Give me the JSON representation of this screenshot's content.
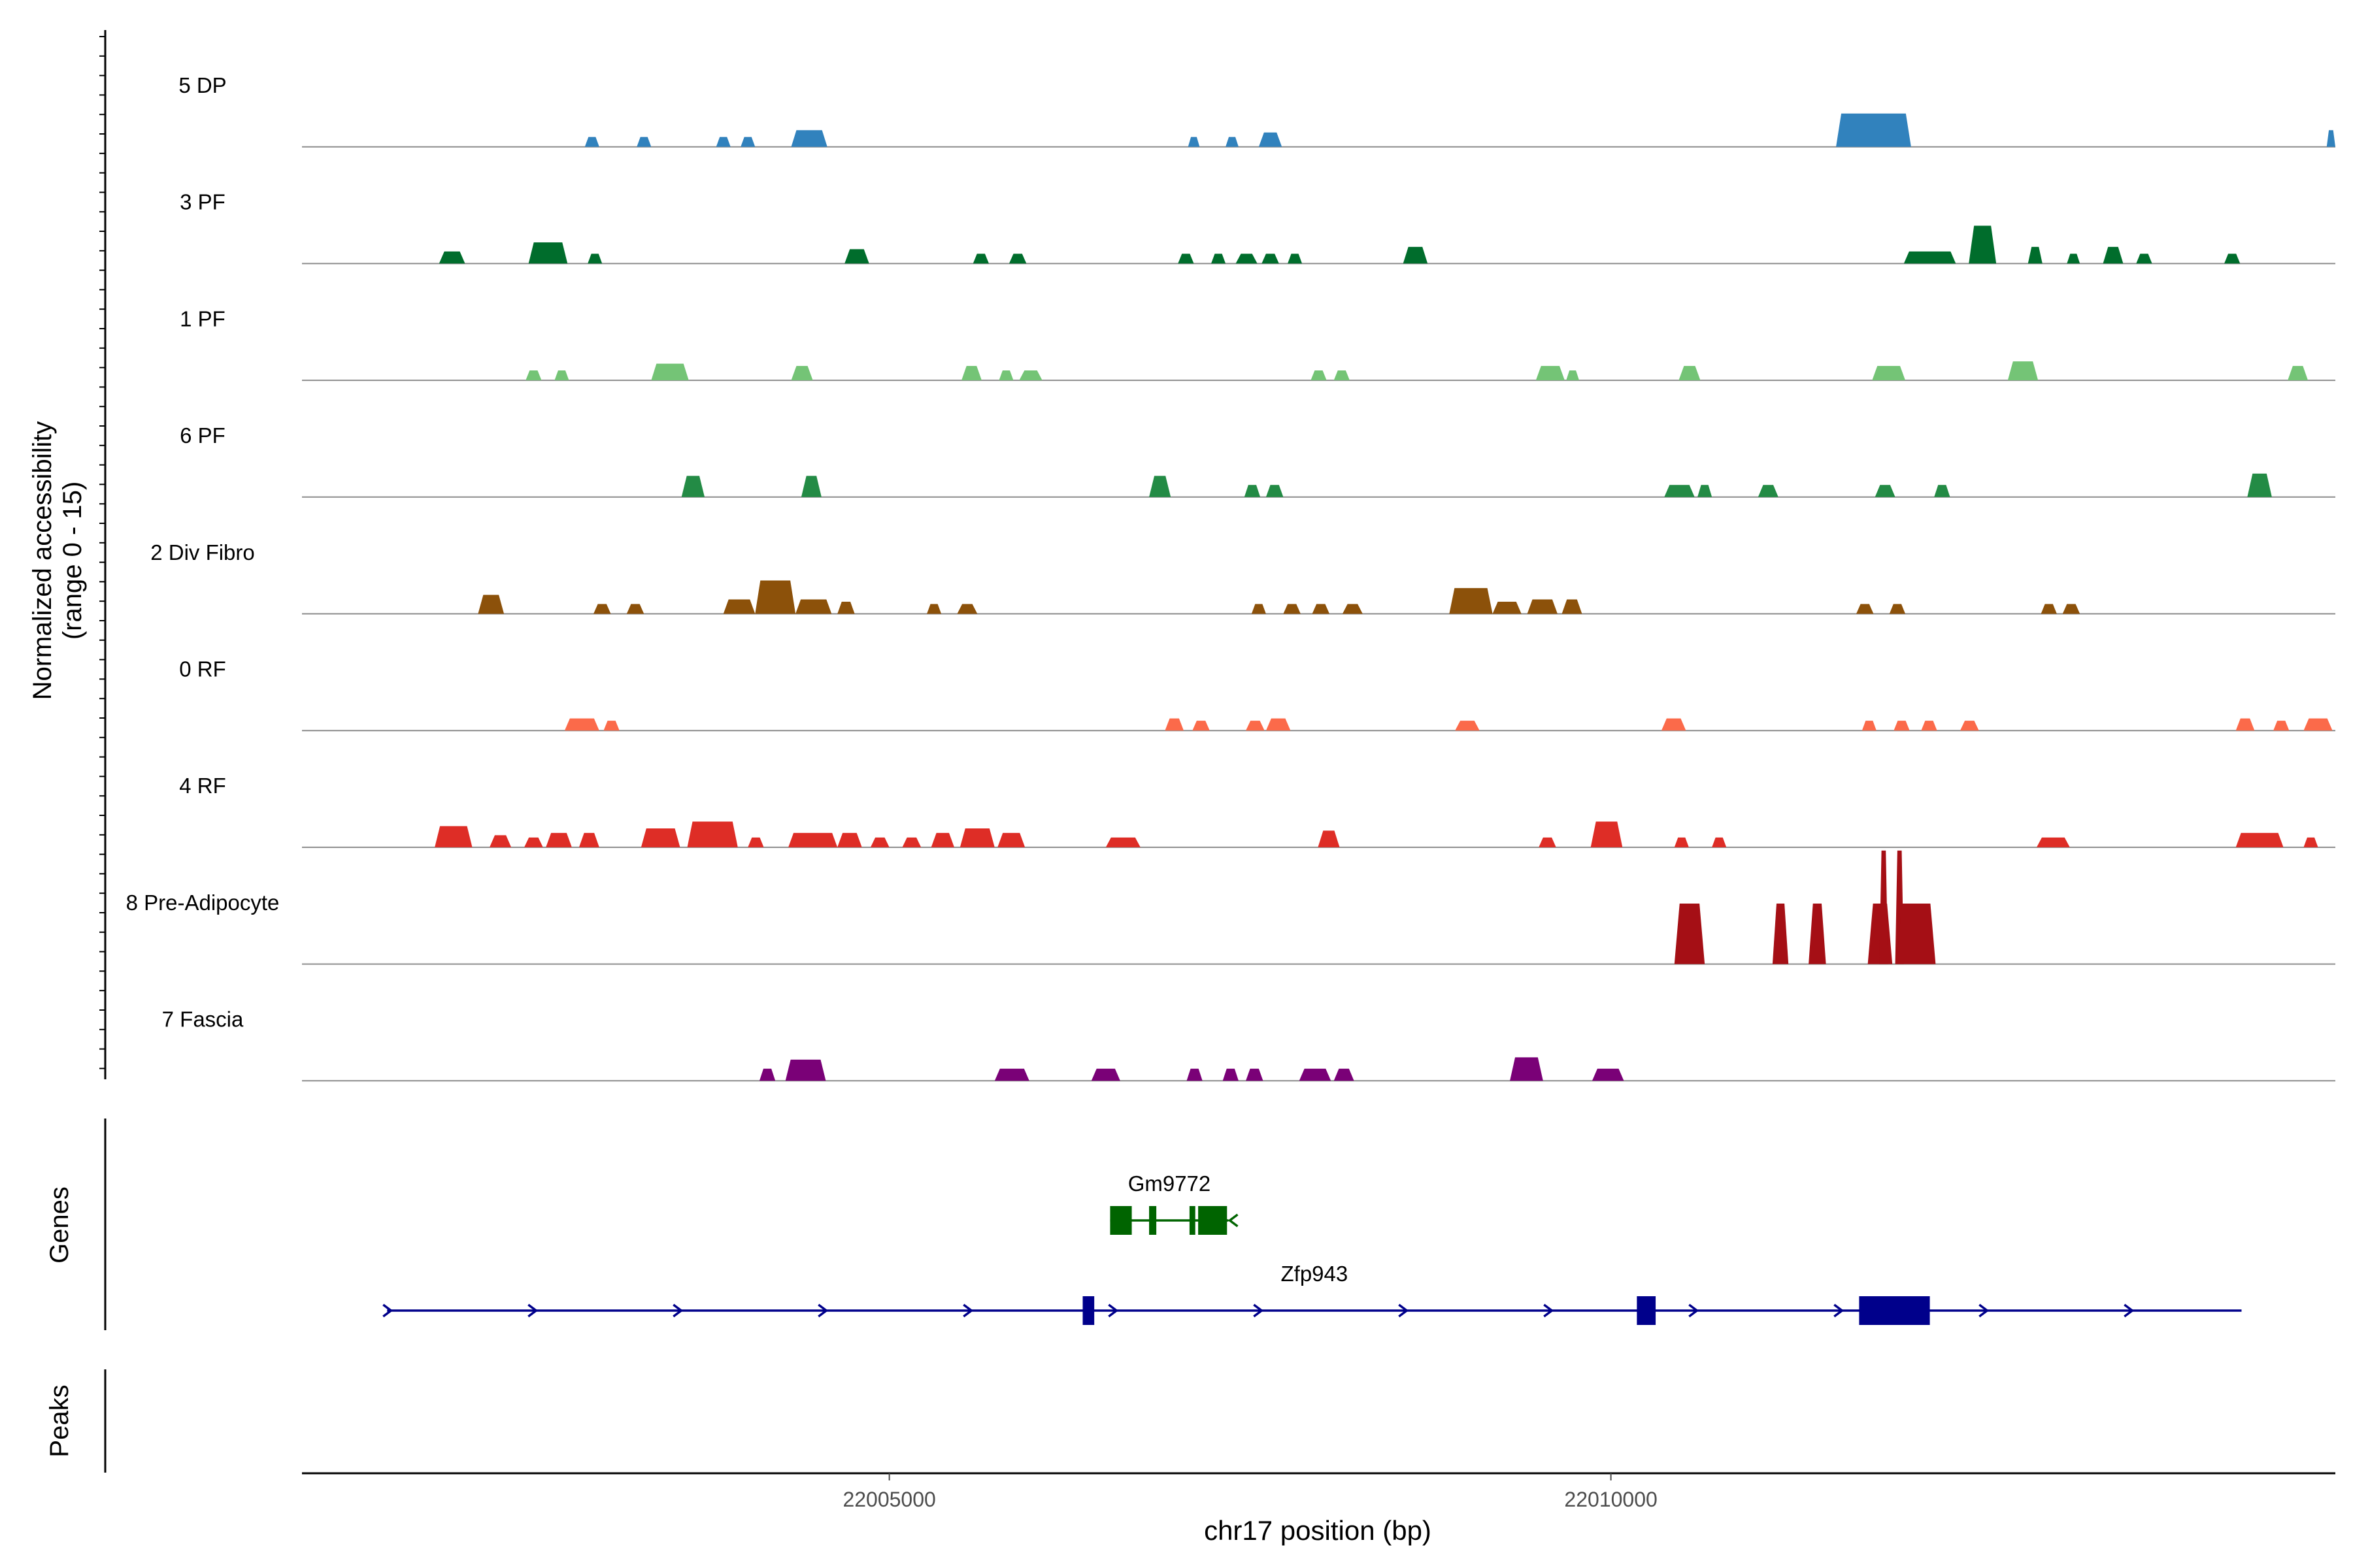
{
  "chart_data": {
    "type": "area",
    "subtype": "genome-coverage-track",
    "ylabel": "Normalized accessibility",
    "ylabel_range": "(range 0 - 15)",
    "ylim": [
      0,
      15
    ],
    "xlabel": "chr17 position (bp)",
    "xlim": [
      22000930,
      22015020
    ],
    "xticks": [
      22005000,
      22010000
    ],
    "xtick_labels": [
      "22005000",
      "22010000"
    ],
    "grid": false,
    "legend": "none",
    "tracks": [
      {
        "name": "5 DP",
        "color": "#3182BD",
        "peaks": [
          [
            22002890,
            22002990,
            1.3
          ],
          [
            22003250,
            22003350,
            1.3
          ],
          [
            22003800,
            22003900,
            1.3
          ],
          [
            22003970,
            22004070,
            1.3
          ],
          [
            22004320,
            22004570,
            2.2
          ],
          [
            22007070,
            22007150,
            1.3
          ],
          [
            22007330,
            22007420,
            1.3
          ],
          [
            22007560,
            22007720,
            1.9
          ],
          [
            22011560,
            22012080,
            4.4
          ],
          [
            22014960,
            22015020,
            2.2
          ]
        ]
      },
      {
        "name": "3 PF",
        "color": "#006D2C",
        "peaks": [
          [
            22001880,
            22002060,
            1.6
          ],
          [
            22002500,
            22002770,
            2.8
          ],
          [
            22002910,
            22003010,
            1.3
          ],
          [
            22004690,
            22004860,
            1.9
          ],
          [
            22005580,
            22005690,
            1.3
          ],
          [
            22005830,
            22005950,
            1.3
          ],
          [
            22007000,
            22007110,
            1.3
          ],
          [
            22007230,
            22007330,
            1.3
          ],
          [
            22007400,
            22007550,
            1.3
          ],
          [
            22007580,
            22007700,
            1.3
          ],
          [
            22007760,
            22007860,
            1.3
          ],
          [
            22008560,
            22008730,
            2.2
          ],
          [
            22012030,
            22012390,
            1.6
          ],
          [
            22012480,
            22012670,
            5.0
          ],
          [
            22012890,
            22012990,
            2.2
          ],
          [
            22013160,
            22013250,
            1.3
          ],
          [
            22013410,
            22013550,
            2.2
          ],
          [
            22013640,
            22013750,
            1.3
          ],
          [
            22014250,
            22014360,
            1.3
          ]
        ]
      },
      {
        "name": "1 PF",
        "color": "#74C476",
        "peaks": [
          [
            22002480,
            22002590,
            1.3
          ],
          [
            22002680,
            22002780,
            1.3
          ],
          [
            22003350,
            22003610,
            2.2
          ],
          [
            22004320,
            22004470,
            1.9
          ],
          [
            22005500,
            22005640,
            1.9
          ],
          [
            22005760,
            22005860,
            1.3
          ],
          [
            22005900,
            22006060,
            1.3
          ],
          [
            22007920,
            22008030,
            1.3
          ],
          [
            22008080,
            22008190,
            1.3
          ],
          [
            22009480,
            22009680,
            1.9
          ],
          [
            22009690,
            22009780,
            1.3
          ],
          [
            22010470,
            22010620,
            1.9
          ],
          [
            22011810,
            22012040,
            1.9
          ],
          [
            22012750,
            22012960,
            2.5
          ],
          [
            22014690,
            22014830,
            1.9
          ]
        ]
      },
      {
        "name": "6 PF",
        "color": "#238B45",
        "peaks": [
          [
            22003560,
            22003720,
            2.8
          ],
          [
            22004390,
            22004530,
            2.8
          ],
          [
            22006800,
            22006950,
            2.8
          ],
          [
            22007460,
            22007570,
            1.6
          ],
          [
            22007610,
            22007730,
            1.6
          ],
          [
            22010370,
            22010580,
            1.6
          ],
          [
            22010600,
            22010700,
            1.6
          ],
          [
            22011020,
            22011160,
            1.6
          ],
          [
            22011830,
            22011970,
            1.6
          ],
          [
            22012240,
            22012350,
            1.6
          ],
          [
            22014410,
            22014580,
            3.1
          ]
        ]
      },
      {
        "name": "2 Div Fibro",
        "color": "#8C510A",
        "peaks": [
          [
            22002150,
            22002330,
            2.5
          ],
          [
            22002950,
            22003070,
            1.3
          ],
          [
            22003180,
            22003300,
            1.3
          ],
          [
            22003850,
            22004070,
            1.9
          ],
          [
            22004070,
            22004350,
            4.4
          ],
          [
            22004350,
            22004600,
            1.9
          ],
          [
            22004640,
            22004760,
            1.6
          ],
          [
            22005260,
            22005360,
            1.3
          ],
          [
            22005470,
            22005610,
            1.3
          ],
          [
            22007510,
            22007610,
            1.3
          ],
          [
            22007730,
            22007850,
            1.3
          ],
          [
            22007930,
            22008050,
            1.3
          ],
          [
            22008140,
            22008280,
            1.3
          ],
          [
            22008880,
            22009180,
            3.4
          ],
          [
            22009180,
            22009380,
            1.6
          ],
          [
            22009420,
            22009630,
            1.9
          ],
          [
            22009660,
            22009800,
            1.9
          ],
          [
            22011700,
            22011820,
            1.3
          ],
          [
            22011930,
            22012040,
            1.3
          ],
          [
            22012980,
            22013090,
            1.3
          ],
          [
            22013130,
            22013250,
            1.3
          ]
        ]
      },
      {
        "name": "0 RF",
        "color": "#FB6A4A",
        "peaks": [
          [
            22002750,
            22002990,
            1.6
          ],
          [
            22003020,
            22003130,
            1.3
          ],
          [
            22006910,
            22007040,
            1.6
          ],
          [
            22007100,
            22007220,
            1.3
          ],
          [
            22007470,
            22007600,
            1.3
          ],
          [
            22007610,
            22007780,
            1.6
          ],
          [
            22008920,
            22009090,
            1.3
          ],
          [
            22010350,
            22010520,
            1.6
          ],
          [
            22011740,
            22011840,
            1.3
          ],
          [
            22011960,
            22012070,
            1.3
          ],
          [
            22012150,
            22012260,
            1.3
          ],
          [
            22012420,
            22012550,
            1.3
          ],
          [
            22014330,
            22014460,
            1.6
          ],
          [
            22014590,
            22014700,
            1.3
          ],
          [
            22014800,
            22015000,
            1.6
          ]
        ]
      },
      {
        "name": "4 RF",
        "color": "#DE2D26",
        "peaks": [
          [
            22001850,
            22002110,
            2.8
          ],
          [
            22002230,
            22002380,
            1.6
          ],
          [
            22002470,
            22002600,
            1.3
          ],
          [
            22002620,
            22002800,
            1.9
          ],
          [
            22002850,
            22002990,
            1.9
          ],
          [
            22003280,
            22003550,
            2.5
          ],
          [
            22003600,
            22003950,
            3.4
          ],
          [
            22004020,
            22004130,
            1.3
          ],
          [
            22004300,
            22004640,
            1.9
          ],
          [
            22004640,
            22004810,
            1.9
          ],
          [
            22004870,
            22005000,
            1.3
          ],
          [
            22005090,
            22005220,
            1.3
          ],
          [
            22005290,
            22005450,
            1.9
          ],
          [
            22005490,
            22005730,
            2.5
          ],
          [
            22005750,
            22005940,
            1.9
          ],
          [
            22006500,
            22006740,
            1.3
          ],
          [
            22007970,
            22008120,
            2.2
          ],
          [
            22009500,
            22009620,
            1.3
          ],
          [
            22009860,
            22010080,
            3.4
          ],
          [
            22010440,
            22010540,
            1.3
          ],
          [
            22010700,
            22010800,
            1.3
          ],
          [
            22012950,
            22013180,
            1.3
          ],
          [
            22014330,
            22014660,
            1.9
          ],
          [
            22014800,
            22014900,
            1.3
          ]
        ]
      },
      {
        "name": "8 Pre-Adipocyte",
        "color": "#A50F15",
        "peaks": [
          [
            22010440,
            22010650,
            8.0
          ],
          [
            22011120,
            22011230,
            8.0
          ],
          [
            22011370,
            22011490,
            8.0
          ],
          [
            22011780,
            22011950,
            8.0
          ],
          [
            22011860,
            22011920,
            15.0
          ],
          [
            22011970,
            22012030,
            15.0
          ],
          [
            22011980,
            22012250,
            8.0
          ]
        ]
      },
      {
        "name": "7 Fascia",
        "color": "#7A0177",
        "peaks": [
          [
            22004100,
            22004210,
            1.6
          ],
          [
            22004280,
            22004560,
            2.8
          ],
          [
            22005730,
            22005970,
            1.6
          ],
          [
            22006400,
            22006600,
            1.6
          ],
          [
            22007060,
            22007170,
            1.6
          ],
          [
            22007310,
            22007420,
            1.6
          ],
          [
            22007470,
            22007590,
            1.6
          ],
          [
            22007840,
            22008060,
            1.6
          ],
          [
            22008080,
            22008220,
            1.6
          ],
          [
            22009300,
            22009530,
            3.1
          ],
          [
            22009870,
            22010090,
            1.6
          ]
        ]
      }
    ],
    "genes": [
      {
        "name": "Gm9772",
        "strand": "-",
        "color": "#006400",
        "start": 22006530,
        "end": 22007350,
        "exons": [
          [
            22006530,
            22006680
          ],
          [
            22006800,
            22006850
          ],
          [
            22007080,
            22007120
          ],
          [
            22007140,
            22007340
          ]
        ]
      },
      {
        "name": "Zfp943",
        "strand": "+",
        "color": "#00008B",
        "start": 22001520,
        "end": 22014370,
        "exons": [
          [
            22006340,
            22006420
          ],
          [
            22010180,
            22010310
          ],
          [
            22011720,
            22012210
          ]
        ]
      }
    ],
    "panel_labels": {
      "genes": "Genes",
      "peaks": "Peaks"
    }
  }
}
